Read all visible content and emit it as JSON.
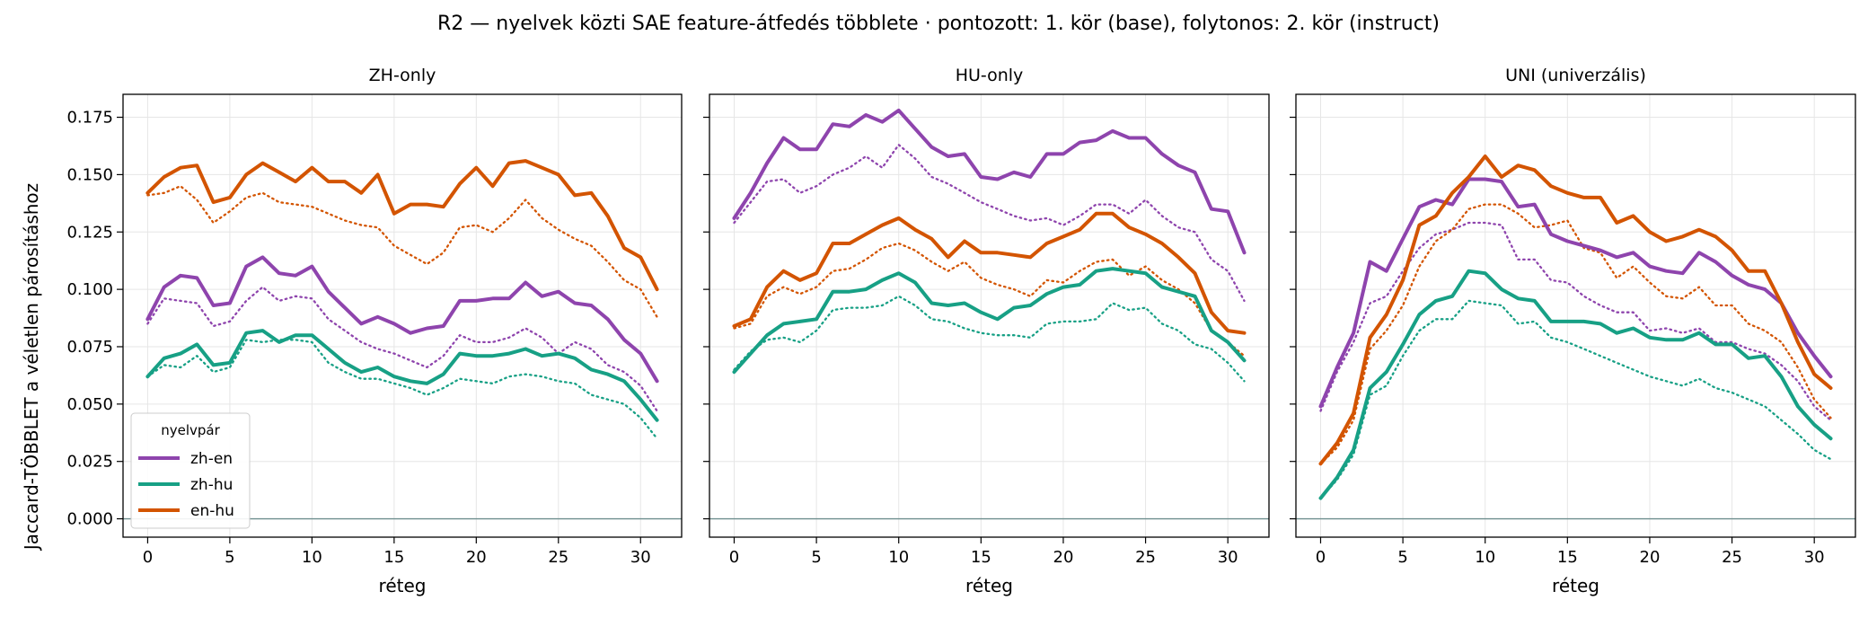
{
  "suptitle": "R2 — nyelvek közti SAE feature-átfedés többlete · pontozott: 1. kör (base), folytonos: 2. kör (instruct)",
  "chart_data": {
    "type": "line",
    "ylabel": "Jaccard-TÖBBLET a véletlen párosításhoz",
    "xlabel": "réteg",
    "x": [
      0,
      1,
      2,
      3,
      4,
      5,
      6,
      7,
      8,
      9,
      10,
      11,
      12,
      13,
      14,
      15,
      16,
      17,
      18,
      19,
      20,
      21,
      22,
      23,
      24,
      25,
      26,
      27,
      28,
      29,
      30,
      31
    ],
    "xlim": [
      -1.5,
      32.5
    ],
    "ylim": [
      -0.008,
      0.185
    ],
    "xticks": [
      0,
      5,
      10,
      15,
      20,
      25,
      30
    ],
    "yticks": [
      "0.000",
      "0.025",
      "0.050",
      "0.075",
      "0.100",
      "0.125",
      "0.150",
      "0.175"
    ],
    "grid": true,
    "legend": {
      "title": "nyelvpár",
      "placement": "lower-left",
      "entries": [
        "zh-en",
        "zh-hu",
        "en-hu"
      ]
    },
    "colors": {
      "zh-en": "#8e44ad",
      "zh-hu": "#17a085",
      "en-hu": "#d35400",
      "zero_line": "#6f8f8f"
    },
    "panels": [
      {
        "title": "ZH-only",
        "series": [
          {
            "name": "zh-en",
            "round": "instruct",
            "values": [
              0.087,
              0.101,
              0.106,
              0.105,
              0.093,
              0.094,
              0.11,
              0.114,
              0.107,
              0.106,
              0.11,
              0.099,
              0.092,
              0.085,
              0.088,
              0.085,
              0.081,
              0.083,
              0.084,
              0.095,
              0.095,
              0.096,
              0.096,
              0.103,
              0.097,
              0.099,
              0.094,
              0.093,
              0.087,
              0.078,
              0.072,
              0.06
            ]
          },
          {
            "name": "zh-en",
            "round": "base",
            "values": [
              0.085,
              0.096,
              0.095,
              0.094,
              0.084,
              0.086,
              0.095,
              0.101,
              0.095,
              0.097,
              0.096,
              0.087,
              0.082,
              0.077,
              0.074,
              0.072,
              0.069,
              0.066,
              0.071,
              0.08,
              0.077,
              0.077,
              0.079,
              0.083,
              0.079,
              0.072,
              0.077,
              0.074,
              0.067,
              0.064,
              0.058,
              0.047
            ]
          },
          {
            "name": "zh-hu",
            "round": "instruct",
            "values": [
              0.062,
              0.07,
              0.072,
              0.076,
              0.067,
              0.068,
              0.081,
              0.082,
              0.077,
              0.08,
              0.08,
              0.074,
              0.068,
              0.064,
              0.066,
              0.062,
              0.06,
              0.059,
              0.063,
              0.072,
              0.071,
              0.071,
              0.072,
              0.074,
              0.071,
              0.072,
              0.07,
              0.065,
              0.063,
              0.06,
              0.052,
              0.043
            ]
          },
          {
            "name": "zh-hu",
            "round": "base",
            "values": [
              0.062,
              0.067,
              0.066,
              0.071,
              0.064,
              0.066,
              0.078,
              0.077,
              0.078,
              0.078,
              0.077,
              0.068,
              0.064,
              0.061,
              0.061,
              0.059,
              0.057,
              0.054,
              0.057,
              0.061,
              0.06,
              0.059,
              0.062,
              0.063,
              0.062,
              0.06,
              0.059,
              0.054,
              0.052,
              0.05,
              0.044,
              0.035
            ]
          },
          {
            "name": "en-hu",
            "round": "instruct",
            "values": [
              0.142,
              0.149,
              0.153,
              0.154,
              0.138,
              0.14,
              0.15,
              0.155,
              0.151,
              0.147,
              0.153,
              0.147,
              0.147,
              0.142,
              0.15,
              0.133,
              0.137,
              0.137,
              0.136,
              0.146,
              0.153,
              0.145,
              0.155,
              0.156,
              0.153,
              0.15,
              0.141,
              0.142,
              0.132,
              0.118,
              0.114,
              0.1
            ]
          },
          {
            "name": "en-hu",
            "round": "base",
            "values": [
              0.141,
              0.142,
              0.145,
              0.139,
              0.129,
              0.134,
              0.14,
              0.142,
              0.138,
              0.137,
              0.136,
              0.133,
              0.13,
              0.128,
              0.127,
              0.119,
              0.115,
              0.111,
              0.116,
              0.127,
              0.128,
              0.125,
              0.131,
              0.139,
              0.131,
              0.126,
              0.122,
              0.119,
              0.112,
              0.104,
              0.1,
              0.088
            ]
          }
        ]
      },
      {
        "title": "HU-only",
        "series": [
          {
            "name": "zh-en",
            "round": "instruct",
            "values": [
              0.131,
              0.142,
              0.155,
              0.166,
              0.161,
              0.161,
              0.172,
              0.171,
              0.176,
              0.173,
              0.178,
              0.17,
              0.162,
              0.158,
              0.159,
              0.149,
              0.148,
              0.151,
              0.149,
              0.159,
              0.159,
              0.164,
              0.165,
              0.169,
              0.166,
              0.166,
              0.159,
              0.154,
              0.151,
              0.135,
              0.134,
              0.116
            ]
          },
          {
            "name": "zh-en",
            "round": "base",
            "values": [
              0.129,
              0.138,
              0.147,
              0.148,
              0.142,
              0.145,
              0.15,
              0.153,
              0.158,
              0.153,
              0.163,
              0.157,
              0.149,
              0.146,
              0.142,
              0.138,
              0.135,
              0.132,
              0.13,
              0.131,
              0.128,
              0.132,
              0.137,
              0.137,
              0.133,
              0.139,
              0.132,
              0.127,
              0.125,
              0.113,
              0.108,
              0.095
            ]
          },
          {
            "name": "zh-hu",
            "round": "instruct",
            "values": [
              0.064,
              0.072,
              0.08,
              0.085,
              0.086,
              0.087,
              0.099,
              0.099,
              0.1,
              0.104,
              0.107,
              0.103,
              0.094,
              0.093,
              0.094,
              0.09,
              0.087,
              0.092,
              0.093,
              0.098,
              0.101,
              0.102,
              0.108,
              0.109,
              0.108,
              0.107,
              0.101,
              0.099,
              0.097,
              0.082,
              0.077,
              0.069
            ]
          },
          {
            "name": "zh-hu",
            "round": "base",
            "values": [
              0.065,
              0.073,
              0.078,
              0.079,
              0.077,
              0.082,
              0.091,
              0.092,
              0.092,
              0.093,
              0.097,
              0.093,
              0.087,
              0.086,
              0.083,
              0.081,
              0.08,
              0.08,
              0.079,
              0.085,
              0.086,
              0.086,
              0.087,
              0.094,
              0.091,
              0.092,
              0.085,
              0.082,
              0.076,
              0.074,
              0.068,
              0.06
            ]
          },
          {
            "name": "en-hu",
            "round": "instruct",
            "values": [
              0.084,
              0.087,
              0.101,
              0.108,
              0.104,
              0.107,
              0.12,
              0.12,
              0.124,
              0.128,
              0.131,
              0.126,
              0.122,
              0.114,
              0.121,
              0.116,
              0.116,
              0.115,
              0.114,
              0.12,
              0.123,
              0.126,
              0.133,
              0.133,
              0.127,
              0.124,
              0.12,
              0.114,
              0.107,
              0.09,
              0.082,
              0.081
            ]
          },
          {
            "name": "en-hu",
            "round": "base",
            "values": [
              0.083,
              0.085,
              0.097,
              0.101,
              0.098,
              0.101,
              0.108,
              0.109,
              0.113,
              0.118,
              0.12,
              0.117,
              0.112,
              0.108,
              0.112,
              0.105,
              0.102,
              0.1,
              0.097,
              0.104,
              0.103,
              0.108,
              0.112,
              0.113,
              0.106,
              0.11,
              0.104,
              0.1,
              0.094,
              0.082,
              0.077,
              0.071
            ]
          }
        ]
      },
      {
        "title": "UNI (univerzális)",
        "series": [
          {
            "name": "zh-en",
            "round": "instruct",
            "values": [
              0.049,
              0.066,
              0.081,
              0.112,
              0.108,
              0.122,
              0.136,
              0.139,
              0.137,
              0.148,
              0.148,
              0.147,
              0.136,
              0.137,
              0.124,
              0.121,
              0.119,
              0.117,
              0.114,
              0.116,
              0.11,
              0.108,
              0.107,
              0.116,
              0.112,
              0.106,
              0.102,
              0.1,
              0.094,
              0.081,
              0.071,
              0.062
            ]
          },
          {
            "name": "zh-en",
            "round": "base",
            "values": [
              0.047,
              0.064,
              0.077,
              0.094,
              0.097,
              0.108,
              0.118,
              0.124,
              0.126,
              0.129,
              0.129,
              0.128,
              0.113,
              0.113,
              0.104,
              0.103,
              0.097,
              0.093,
              0.09,
              0.09,
              0.082,
              0.083,
              0.081,
              0.083,
              0.077,
              0.077,
              0.074,
              0.072,
              0.067,
              0.06,
              0.049,
              0.043
            ]
          },
          {
            "name": "zh-hu",
            "round": "instruct",
            "values": [
              0.009,
              0.018,
              0.03,
              0.057,
              0.064,
              0.076,
              0.089,
              0.095,
              0.097,
              0.108,
              0.107,
              0.1,
              0.096,
              0.095,
              0.086,
              0.086,
              0.086,
              0.085,
              0.081,
              0.083,
              0.079,
              0.078,
              0.078,
              0.081,
              0.076,
              0.076,
              0.07,
              0.071,
              0.062,
              0.049,
              0.041,
              0.035
            ]
          },
          {
            "name": "zh-hu",
            "round": "base",
            "values": [
              0.009,
              0.017,
              0.028,
              0.054,
              0.058,
              0.071,
              0.082,
              0.087,
              0.087,
              0.095,
              0.094,
              0.093,
              0.085,
              0.086,
              0.079,
              0.077,
              0.074,
              0.071,
              0.068,
              0.065,
              0.062,
              0.06,
              0.058,
              0.061,
              0.057,
              0.055,
              0.052,
              0.049,
              0.043,
              0.037,
              0.03,
              0.026
            ]
          },
          {
            "name": "en-hu",
            "round": "instruct",
            "values": [
              0.024,
              0.033,
              0.046,
              0.079,
              0.089,
              0.104,
              0.128,
              0.132,
              0.142,
              0.149,
              0.158,
              0.149,
              0.154,
              0.152,
              0.145,
              0.142,
              0.14,
              0.14,
              0.129,
              0.132,
              0.125,
              0.121,
              0.123,
              0.126,
              0.123,
              0.117,
              0.108,
              0.108,
              0.094,
              0.077,
              0.063,
              0.057
            ]
          },
          {
            "name": "en-hu",
            "round": "base",
            "values": [
              0.024,
              0.031,
              0.043,
              0.074,
              0.082,
              0.093,
              0.11,
              0.121,
              0.126,
              0.135,
              0.137,
              0.137,
              0.133,
              0.127,
              0.128,
              0.13,
              0.118,
              0.116,
              0.105,
              0.11,
              0.103,
              0.097,
              0.096,
              0.101,
              0.093,
              0.093,
              0.085,
              0.082,
              0.077,
              0.066,
              0.052,
              0.044
            ]
          }
        ]
      }
    ]
  }
}
